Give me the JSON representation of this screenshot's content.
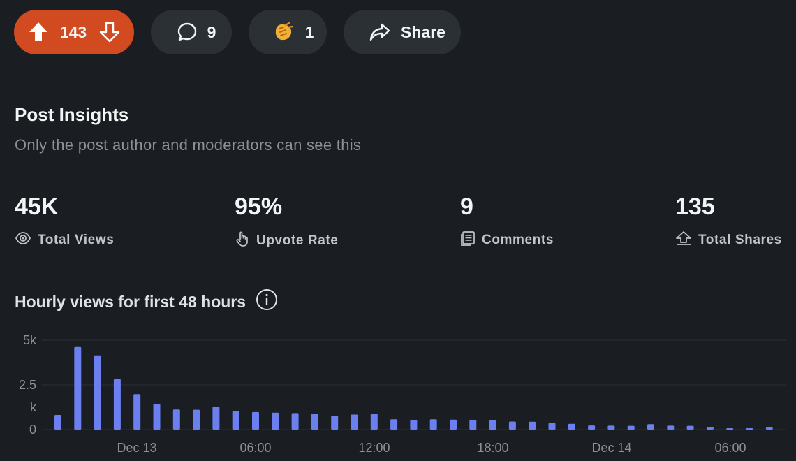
{
  "actions": {
    "score": "143",
    "comments": "9",
    "awards": "1",
    "share_label": "Share"
  },
  "insights": {
    "title": "Post Insights",
    "subtitle": "Only the post author and moderators can see this",
    "stats": [
      {
        "value": "45K",
        "label": "Total Views",
        "icon": "eye-icon"
      },
      {
        "value": "95%",
        "label": "Upvote Rate",
        "icon": "hand-pointer-icon"
      },
      {
        "value": "9",
        "label": "Comments",
        "icon": "document-icon"
      },
      {
        "value": "135",
        "label": "Total Shares",
        "icon": "share-up-arrow-icon"
      }
    ]
  },
  "chart_title": "Hourly views for first 48 hours",
  "colors": {
    "upvote": "#d24a1f",
    "bar": "#6b7ff0",
    "background": "#1a1d21"
  },
  "chart_data": {
    "type": "bar",
    "xlabel": "",
    "ylabel": "",
    "ylim": [
      0,
      5000
    ],
    "ytick_labels": [
      "5k",
      "2.5",
      "k",
      "0"
    ],
    "xtick_labels": [
      "Dec 13",
      "06:00",
      "12:00",
      "18:00",
      "Dec 14",
      "06:00"
    ],
    "grid": true,
    "values": [
      820,
      4620,
      4150,
      2820,
      1980,
      1430,
      1120,
      1110,
      1280,
      1040,
      980,
      950,
      920,
      890,
      760,
      840,
      900,
      580,
      540,
      580,
      560,
      530,
      510,
      450,
      440,
      370,
      320,
      230,
      220,
      210,
      300,
      220,
      210,
      150,
      70,
      60,
      120
    ]
  }
}
